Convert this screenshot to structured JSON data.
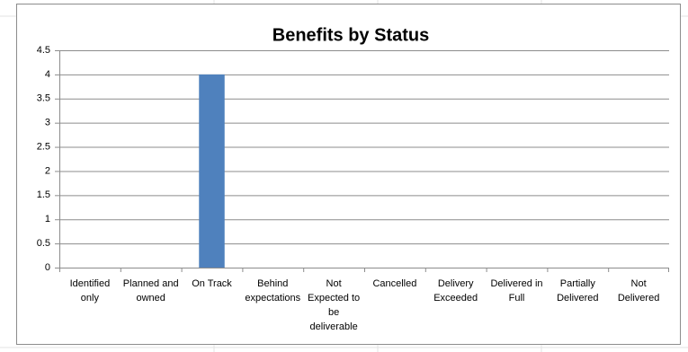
{
  "chart_data": {
    "type": "bar",
    "title": "Benefits by Status",
    "categories": [
      "Identified only",
      "Planned and owned",
      "On Track",
      "Behind expectations",
      "Not Expected to be deliverable",
      "Cancelled",
      "Delivery Exceeded",
      "Delivered in Full",
      "Partially Delivered",
      "Not Delivered"
    ],
    "values": [
      0,
      0,
      4,
      0,
      0,
      0,
      0,
      0,
      0,
      0
    ],
    "color": "#4f81bd",
    "ylim": [
      0,
      4.5
    ],
    "yticks": [
      0,
      0.5,
      1,
      1.5,
      2,
      2.5,
      3,
      3.5,
      4,
      4.5
    ],
    "grid": true
  }
}
